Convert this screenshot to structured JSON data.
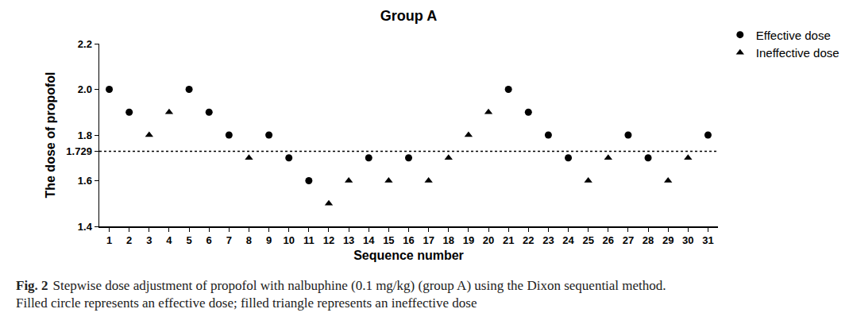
{
  "chart_data": {
    "type": "scatter",
    "title": "Group A",
    "x_label": "Sequence number",
    "y_label": "The dose of propofol",
    "x": [
      1,
      2,
      3,
      4,
      5,
      6,
      7,
      8,
      9,
      10,
      11,
      12,
      13,
      14,
      15,
      16,
      17,
      18,
      19,
      20,
      21,
      22,
      23,
      24,
      25,
      26,
      27,
      28,
      29,
      30,
      31
    ],
    "series": [
      {
        "name": "Effective dose",
        "color": "#000000",
        "marker": "circle",
        "values": [
          2.0,
          1.9,
          null,
          null,
          2.0,
          1.9,
          1.8,
          null,
          1.8,
          1.7,
          1.6,
          null,
          null,
          1.7,
          null,
          1.7,
          null,
          null,
          null,
          null,
          2.0,
          1.9,
          1.8,
          1.7,
          null,
          null,
          1.8,
          1.7,
          null,
          null,
          1.8
        ]
      },
      {
        "name": "Ineffective dose",
        "color": "#000000",
        "marker": "triangle",
        "values": [
          null,
          null,
          1.8,
          1.9,
          null,
          null,
          null,
          1.7,
          null,
          null,
          null,
          1.5,
          1.6,
          null,
          1.6,
          null,
          1.6,
          1.7,
          1.8,
          1.9,
          null,
          null,
          null,
          null,
          1.6,
          1.7,
          null,
          null,
          1.6,
          1.7,
          null
        ]
      }
    ],
    "hline": {
      "value": 1.729,
      "line_style": "dotted",
      "color": "#000000"
    },
    "xlim": [
      0.5,
      31.5
    ],
    "xticks": [
      1,
      2,
      3,
      4,
      5,
      6,
      7,
      8,
      9,
      10,
      11,
      12,
      13,
      14,
      15,
      16,
      17,
      18,
      19,
      20,
      21,
      22,
      23,
      24,
      25,
      26,
      27,
      28,
      29,
      30,
      31
    ],
    "ylim": [
      1.4,
      2.2
    ],
    "yticks": [
      1.4,
      1.6,
      1.729,
      1.8,
      {
        "value": 2.0,
        "label": "2.0"
      },
      2.2
    ],
    "grid": false,
    "legend": "upper right",
    "caption": {
      "label": "Fig. 2",
      "lines": [
        "Stepwise dose adjustment of propofol with nalbuphine (0.1 mg/kg) (group A) using the Dixon sequential method.",
        "Filled circle represents an effective dose; filled triangle represents an ineffective dose"
      ]
    }
  }
}
